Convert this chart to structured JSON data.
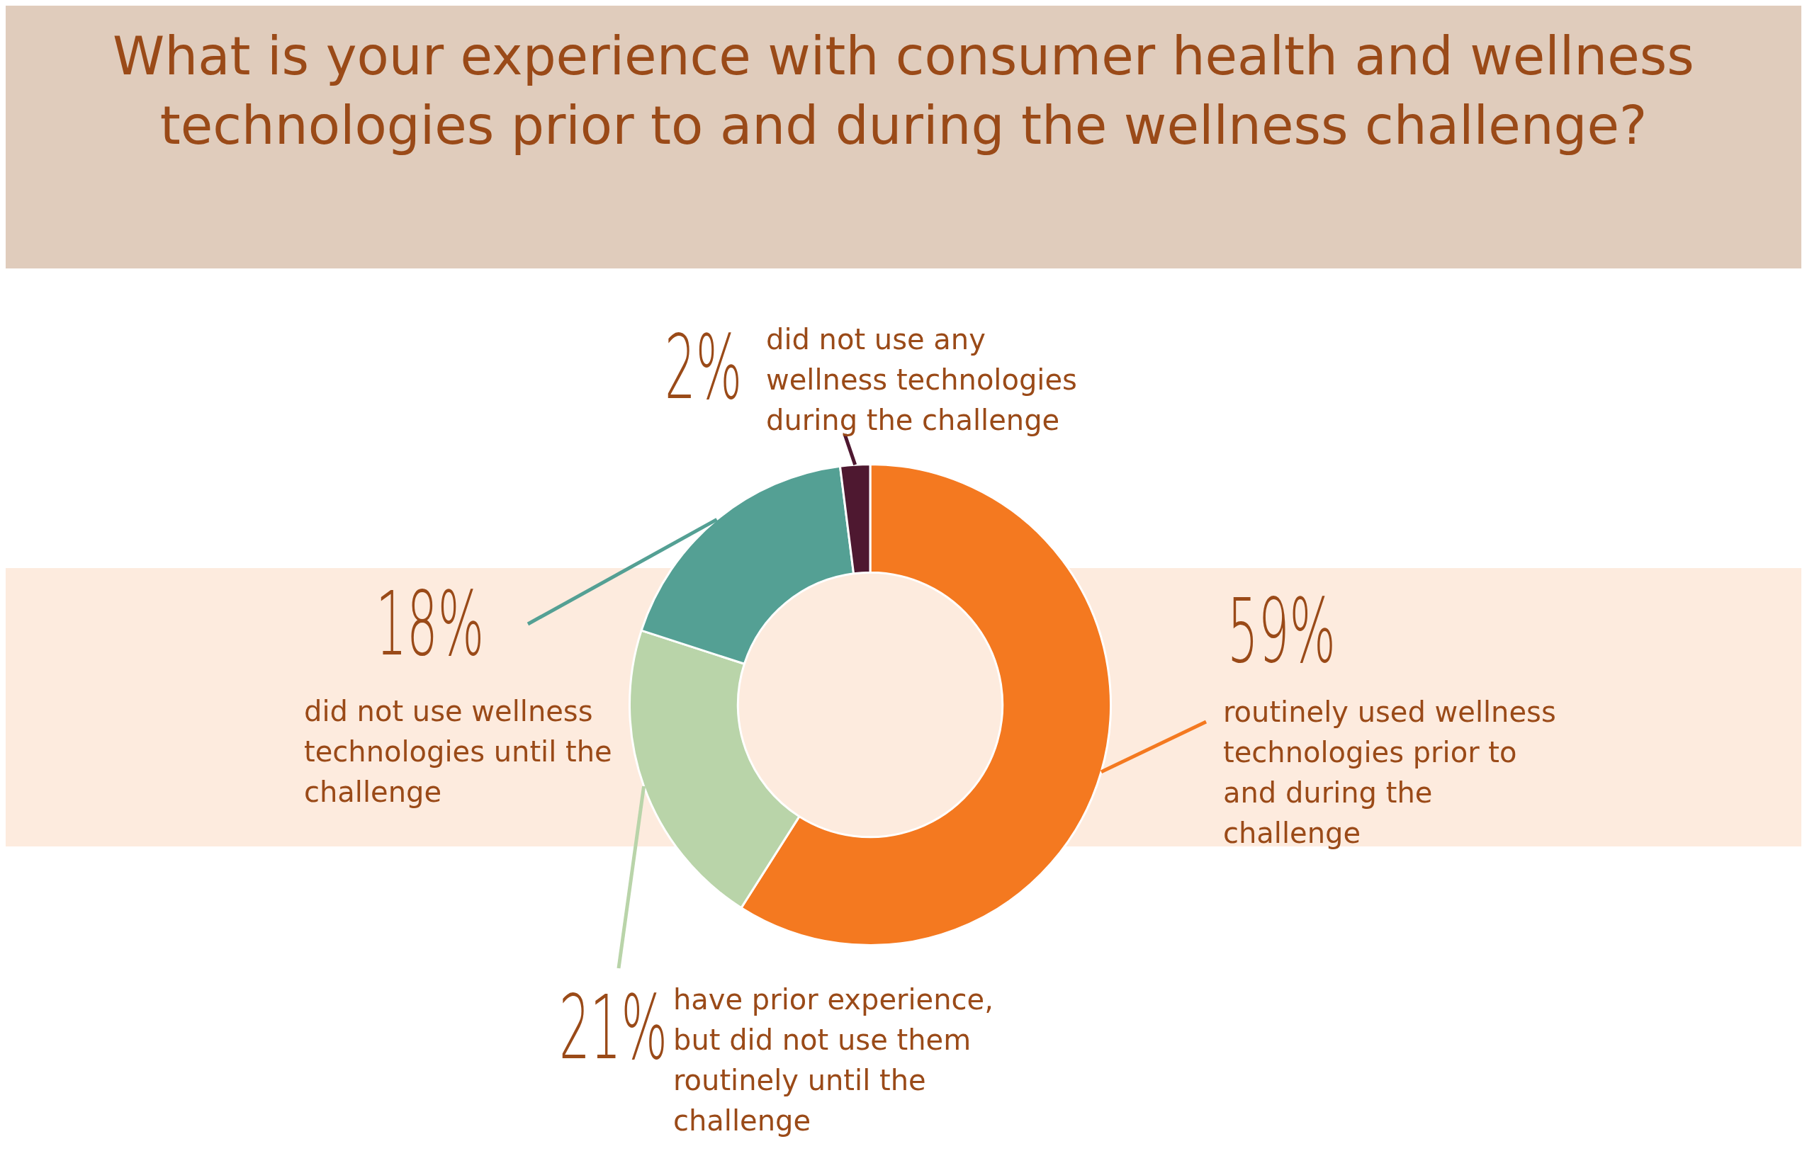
{
  "chart_data": {
    "type": "donut",
    "title": "What is your experience with consumer health and wellness technologies prior to and during the wellness challenge?",
    "categories": [
      "routinely used wellness technologies prior to and during the challenge",
      "have prior experience, but did not use them routinely until the challenge",
      "did not use wellness technologies until the challenge",
      "did not use any wellness technologies during the challenge"
    ],
    "values": [
      59,
      21,
      18,
      2
    ],
    "value_labels": [
      "59%",
      "21%",
      "18%",
      "2%"
    ],
    "colors": [
      "#f47920",
      "#b9d4a9",
      "#54a094",
      "#4e1830"
    ]
  }
}
